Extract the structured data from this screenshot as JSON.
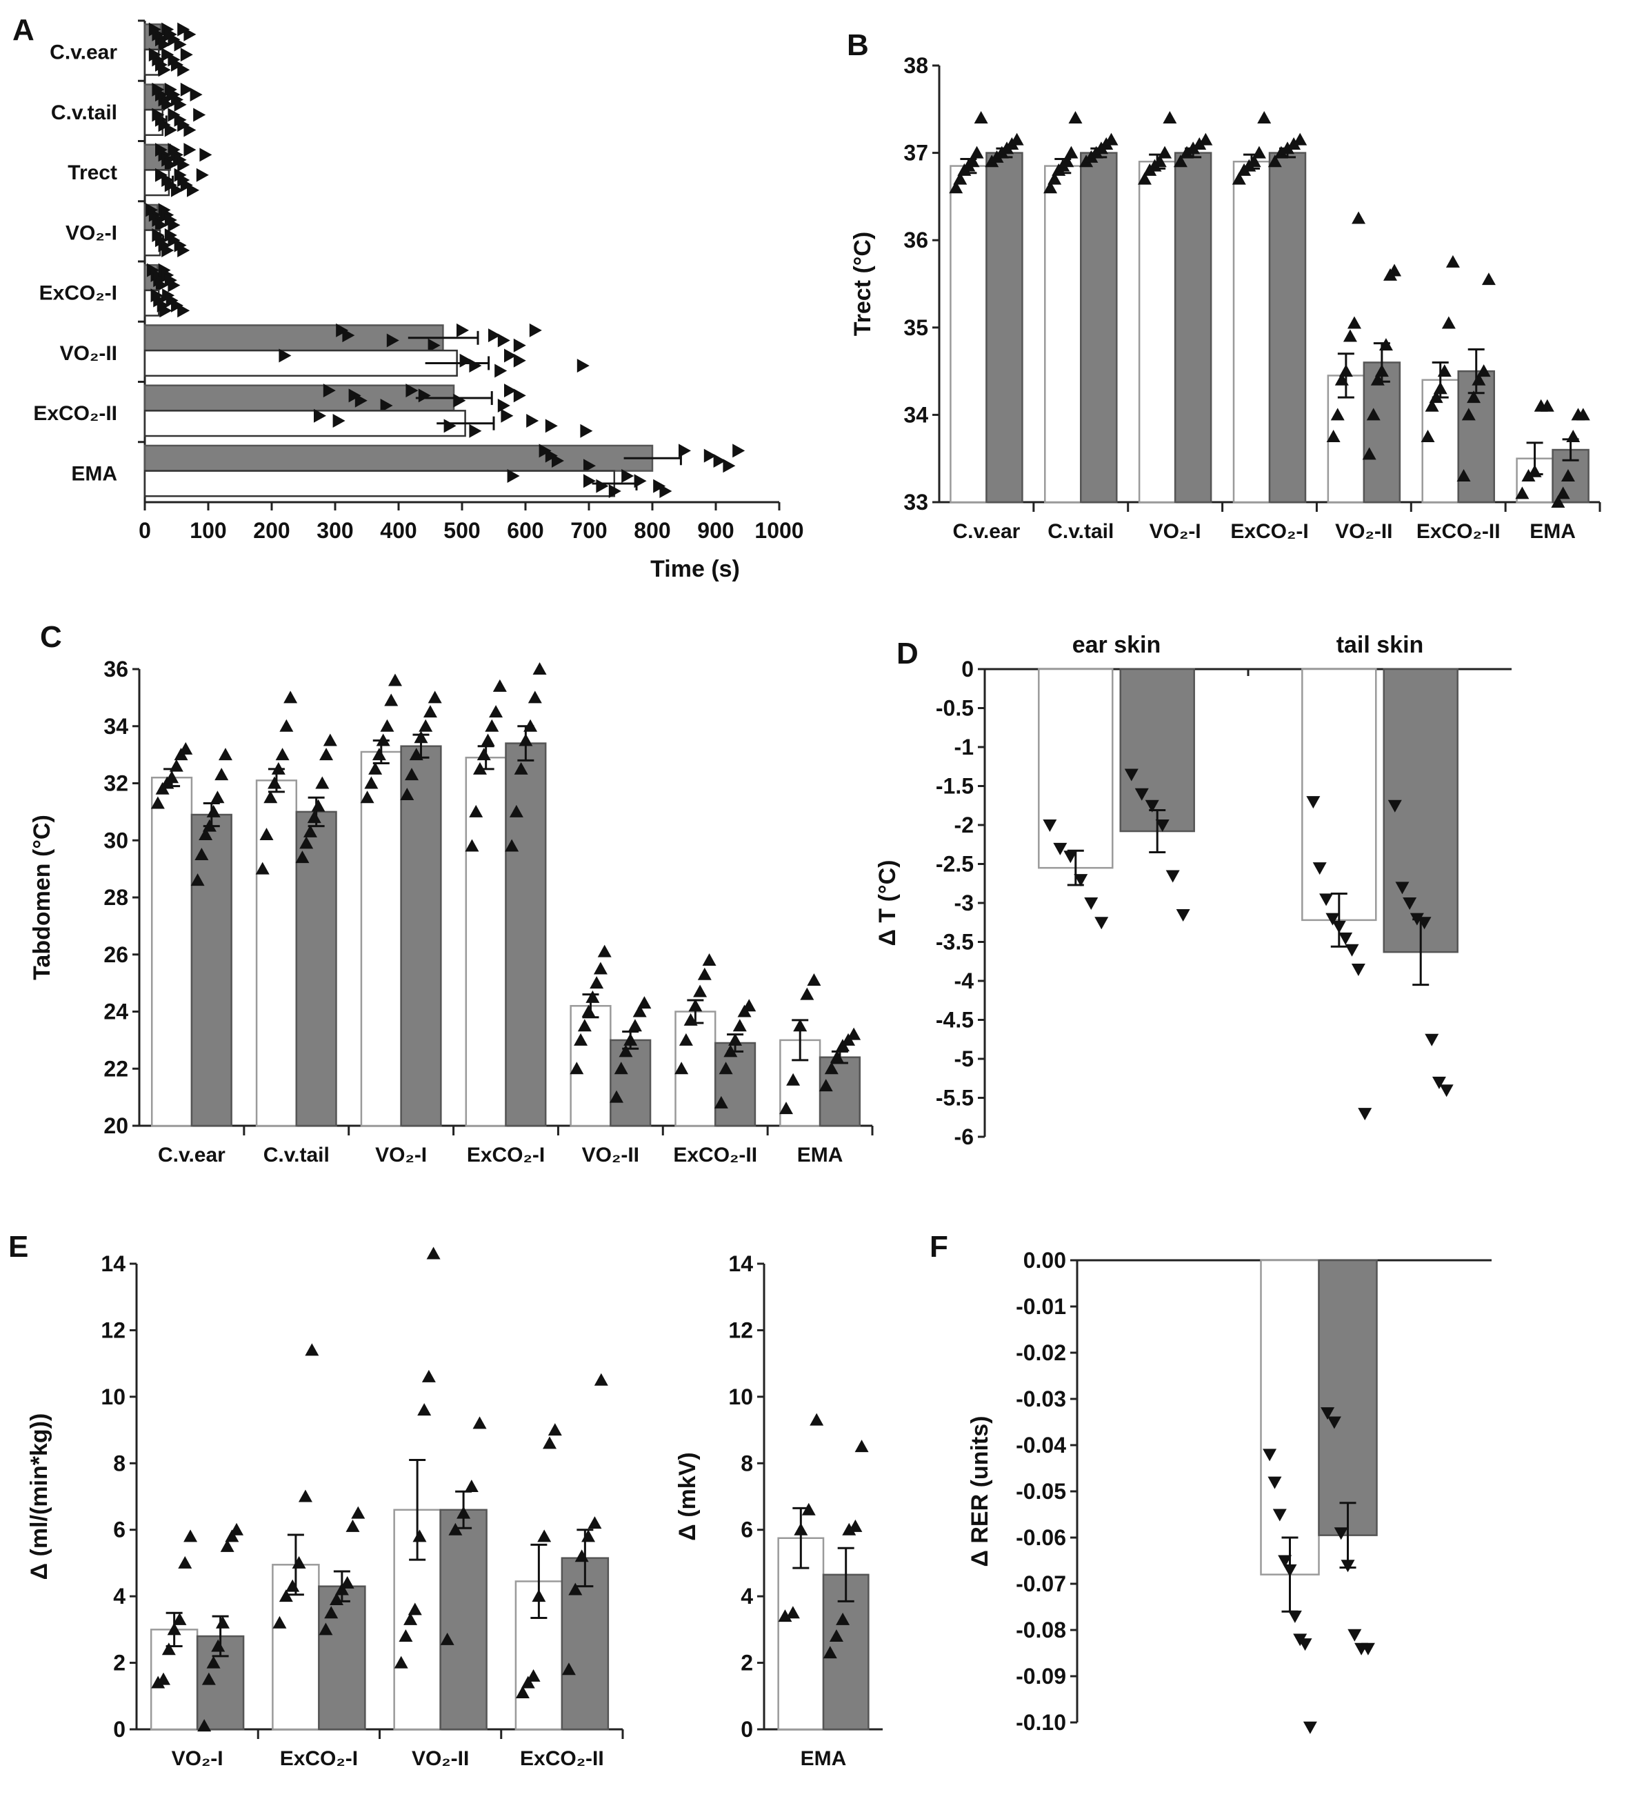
{
  "chart_data": [
    {
      "id": "A",
      "panel_label": "A",
      "type": "bar",
      "orientation": "horizontal",
      "categories": [
        "C.v.ear",
        "C.v.tail",
        "Trect",
        "VO₂-I",
        "ExCO₂-I",
        "VO₂-II",
        "ExCO₂-II",
        "EMA"
      ],
      "series": [
        {
          "name": "filled",
          "color": "#7f7f7f",
          "values": [
            25,
            30,
            40,
            20,
            20,
            470,
            487,
            800
          ],
          "errors": [
            6,
            6,
            6,
            5,
            5,
            55,
            60,
            45
          ]
        },
        {
          "name": "open",
          "color": "#ffffff",
          "values": [
            22,
            28,
            38,
            24,
            22,
            492,
            505,
            740
          ],
          "errors": [
            6,
            6,
            6,
            5,
            5,
            50,
            45,
            35
          ]
        }
      ],
      "points": [
        [
          [
            15,
            20,
            25,
            30,
            35,
            40,
            45,
            55,
            60,
            70
          ],
          [
            15,
            20,
            25,
            30,
            35,
            45,
            50,
            60,
            65
          ]
        ],
        [
          [
            20,
            25,
            30,
            35,
            40,
            45,
            50,
            55,
            65,
            80
          ],
          [
            20,
            25,
            30,
            40,
            45,
            55,
            60,
            70,
            85
          ]
        ],
        [
          [
            25,
            30,
            35,
            40,
            45,
            50,
            55,
            60,
            70,
            95
          ],
          [
            25,
            35,
            40,
            50,
            55,
            60,
            65,
            75,
            90
          ]
        ],
        [
          [
            10,
            15,
            20,
            25,
            30,
            35,
            40,
            45
          ],
          [
            20,
            25,
            30,
            35,
            40,
            45,
            55,
            60
          ]
        ],
        [
          [
            12,
            18,
            22,
            26,
            30,
            35,
            40,
            45
          ],
          [
            18,
            22,
            28,
            32,
            36,
            42,
            50,
            60
          ]
        ],
        [
          [
            310,
            320,
            390,
            455,
            500,
            550,
            565,
            590,
            615
          ],
          [
            220,
            505,
            520,
            560,
            575,
            590,
            690
          ]
        ],
        [
          [
            290,
            330,
            340,
            380,
            420,
            440,
            495,
            565,
            575,
            590
          ],
          [
            275,
            305,
            480,
            520,
            570,
            610,
            640,
            695
          ]
        ],
        [
          [
            630,
            640,
            650,
            700,
            850,
            890,
            905,
            920,
            935
          ],
          [
            580,
            700,
            720,
            740,
            760,
            780,
            810,
            820
          ]
        ]
      ],
      "xlim": [
        0,
        1000
      ],
      "xticks": [
        0,
        100,
        200,
        300,
        400,
        500,
        600,
        700,
        800,
        900,
        1000
      ],
      "xlabel": "Time (s)",
      "ylabel": ""
    },
    {
      "id": "B",
      "panel_label": "B",
      "type": "bar",
      "categories": [
        "C.v.ear",
        "C.v.tail",
        "VO₂-I",
        "ExCO₂-I",
        "VO₂-II",
        "ExCO₂-II",
        "EMA"
      ],
      "series": [
        {
          "name": "open",
          "color": "#ffffff",
          "values": [
            36.85,
            36.85,
            36.9,
            36.9,
            34.45,
            34.4,
            33.5
          ],
          "errors": [
            0.08,
            0.08,
            0.08,
            0.08,
            0.25,
            0.2,
            0.18
          ]
        },
        {
          "name": "filled",
          "color": "#7f7f7f",
          "values": [
            37.0,
            37.0,
            37.0,
            37.0,
            34.6,
            34.5,
            33.6
          ],
          "errors": [
            0.05,
            0.05,
            0.05,
            0.05,
            0.22,
            0.25,
            0.12
          ]
        }
      ],
      "points": [
        [
          [
            36.6,
            36.7,
            36.8,
            36.85,
            36.9,
            37.0,
            37.4
          ],
          [
            36.9,
            36.95,
            37.0,
            37.05,
            37.1,
            37.15
          ]
        ],
        [
          [
            36.6,
            36.7,
            36.8,
            36.85,
            36.9,
            37.0,
            37.4
          ],
          [
            36.9,
            36.95,
            37.0,
            37.05,
            37.1,
            37.15
          ]
        ],
        [
          [
            36.7,
            36.8,
            36.85,
            36.9,
            37.0,
            37.4
          ],
          [
            36.9,
            37.0,
            37.05,
            37.1,
            37.15
          ]
        ],
        [
          [
            36.7,
            36.8,
            36.85,
            36.9,
            37.0,
            37.4
          ],
          [
            36.9,
            37.0,
            37.05,
            37.1,
            37.15
          ]
        ],
        [
          [
            33.75,
            34.0,
            34.4,
            34.5,
            34.9,
            35.05,
            36.25
          ],
          [
            33.55,
            34.0,
            34.4,
            34.5,
            34.8,
            35.6,
            35.65
          ]
        ],
        [
          [
            33.75,
            34.1,
            34.2,
            34.3,
            34.5,
            35.05,
            35.75
          ],
          [
            33.3,
            34.0,
            34.2,
            34.4,
            34.5,
            35.55
          ]
        ],
        [
          [
            33.1,
            33.3,
            33.35,
            34.1,
            34.1
          ],
          [
            33.0,
            33.1,
            33.3,
            33.75,
            34.0,
            34.0
          ]
        ]
      ],
      "ylim": [
        33,
        38
      ],
      "yticks": [
        33,
        34,
        35,
        36,
        37,
        38
      ],
      "ylabel": "Trect (°C)",
      "xlabel": ""
    },
    {
      "id": "C",
      "panel_label": "C",
      "type": "bar",
      "categories": [
        "C.v.ear",
        "C.v.tail",
        "VO₂-I",
        "ExCO₂-I",
        "VO₂-II",
        "ExCO₂-II",
        "EMA"
      ],
      "series": [
        {
          "name": "open",
          "color": "#ffffff",
          "values": [
            32.2,
            32.1,
            33.1,
            32.9,
            24.2,
            24.0,
            23.0
          ],
          "errors": [
            0.3,
            0.4,
            0.4,
            0.4,
            0.4,
            0.4,
            0.7
          ]
        },
        {
          "name": "filled",
          "color": "#7f7f7f",
          "values": [
            30.9,
            31.0,
            33.3,
            33.4,
            23.0,
            22.9,
            22.4
          ],
          "errors": [
            0.4,
            0.5,
            0.4,
            0.6,
            0.3,
            0.3,
            0.2
          ]
        }
      ],
      "points": [
        [
          [
            31.3,
            31.8,
            32.0,
            32.2,
            32.6,
            33.0,
            33.2
          ],
          [
            28.6,
            29.5,
            30.2,
            30.5,
            31.0,
            31.5,
            32.3,
            33.0
          ]
        ],
        [
          [
            29.0,
            30.2,
            31.5,
            32.0,
            32.5,
            33.0,
            34.0,
            35.0
          ],
          [
            29.4,
            29.9,
            30.3,
            30.8,
            31.2,
            32.0,
            33.0,
            33.5
          ]
        ],
        [
          [
            31.5,
            32.0,
            32.5,
            33.0,
            33.5,
            34.0,
            34.9,
            35.6
          ],
          [
            31.6,
            32.3,
            33.0,
            33.6,
            34.0,
            34.5,
            35.0
          ]
        ],
        [
          [
            29.8,
            31.0,
            32.5,
            33.0,
            33.5,
            34.0,
            34.5,
            35.4
          ],
          [
            29.8,
            31.0,
            32.5,
            33.5,
            34.0,
            35.0,
            36.0
          ]
        ],
        [
          [
            22.0,
            23.0,
            23.5,
            24.0,
            24.5,
            25.0,
            25.5,
            26.1
          ],
          [
            21.0,
            22.0,
            22.6,
            23.0,
            23.5,
            24.0,
            24.3
          ]
        ],
        [
          [
            22.0,
            23.0,
            23.7,
            24.2,
            24.7,
            25.3,
            25.8
          ],
          [
            20.8,
            22.0,
            22.6,
            23.0,
            23.5,
            24.0,
            24.2
          ]
        ],
        [
          [
            20.6,
            21.6,
            23.5,
            24.6,
            25.1
          ],
          [
            21.4,
            22.0,
            22.4,
            22.8,
            23.0,
            23.2
          ]
        ]
      ],
      "ylim": [
        20,
        36
      ],
      "yticks": [
        20,
        22,
        24,
        26,
        28,
        30,
        32,
        34,
        36
      ],
      "ylabel": "Tabdomen (°C)",
      "xlabel": ""
    },
    {
      "id": "D",
      "panel_label": "D",
      "type": "bar",
      "categories": [
        "ear skin",
        "tail skin"
      ],
      "series": [
        {
          "name": "open",
          "color": "#ffffff",
          "values": [
            -2.55,
            -3.22
          ],
          "errors": [
            0.22,
            0.34
          ]
        },
        {
          "name": "filled",
          "color": "#7f7f7f",
          "values": [
            -2.08,
            -3.63
          ],
          "errors": [
            0.27,
            0.42
          ]
        }
      ],
      "points": [
        [
          [
            -2.0,
            -2.3,
            -2.4,
            -2.7,
            -3.0,
            -3.25
          ],
          [
            -1.35,
            -1.6,
            -1.75,
            -2.0,
            -2.65,
            -3.15
          ]
        ],
        [
          [
            -1.7,
            -2.55,
            -2.95,
            -3.2,
            -3.3,
            -3.45,
            -3.6,
            -3.85,
            -5.7
          ],
          [
            -1.75,
            -2.8,
            -3.0,
            -3.2,
            -3.25,
            -4.75,
            -5.3,
            -5.4
          ]
        ]
      ],
      "ylim": [
        -6,
        0
      ],
      "yticks": [
        0,
        -0.5,
        -1,
        -1.5,
        -2,
        -2.5,
        -3,
        -3.5,
        -4,
        -4.5,
        -5,
        -5.5,
        -6
      ],
      "ylabel": "Δ T  (°C)",
      "xlabel": ""
    },
    {
      "id": "E1",
      "panel_label": "E",
      "type": "bar",
      "categories": [
        "VO₂-I",
        "ExCO₂-I",
        "VO₂-II",
        "ExCO₂-II"
      ],
      "series": [
        {
          "name": "open",
          "color": "#ffffff",
          "values": [
            3.0,
            4.95,
            6.6,
            4.45
          ],
          "errors": [
            0.5,
            0.9,
            1.5,
            1.1
          ]
        },
        {
          "name": "filled",
          "color": "#7f7f7f",
          "values": [
            2.8,
            4.3,
            6.6,
            5.15
          ],
          "errors": [
            0.6,
            0.45,
            0.55,
            0.85
          ]
        }
      ],
      "points": [
        [
          [
            1.4,
            1.5,
            2.4,
            3.0,
            3.3,
            5.0,
            5.8
          ],
          [
            0.1,
            1.5,
            2.0,
            2.5,
            3.2,
            5.5,
            5.8,
            6.0
          ]
        ],
        [
          [
            3.2,
            4.0,
            4.3,
            5.0,
            7.0,
            11.4
          ],
          [
            3.0,
            3.5,
            3.9,
            4.2,
            4.4,
            6.1,
            6.5
          ]
        ],
        [
          [
            2.0,
            2.8,
            3.3,
            3.6,
            5.8,
            9.6,
            10.6,
            14.3
          ],
          [
            2.7,
            6.0,
            6.5,
            7.3,
            9.2
          ]
        ],
        [
          [
            1.1,
            1.4,
            1.6,
            4.0,
            5.8,
            8.6,
            9.0
          ],
          [
            1.8,
            4.2,
            5.2,
            5.8,
            6.2,
            10.5
          ]
        ]
      ],
      "ylim": [
        0,
        14
      ],
      "yticks": [
        0,
        2,
        4,
        6,
        8,
        10,
        12,
        14
      ],
      "ylabel": "Δ (ml/(min*kg))",
      "xlabel": ""
    },
    {
      "id": "E2",
      "panel_label": "",
      "type": "bar",
      "categories": [
        "EMA"
      ],
      "series": [
        {
          "name": "open",
          "color": "#ffffff",
          "values": [
            5.75
          ],
          "errors": [
            0.9
          ]
        },
        {
          "name": "filled",
          "color": "#7f7f7f",
          "values": [
            4.65
          ],
          "errors": [
            0.8
          ]
        }
      ],
      "points": [
        [
          [
            3.4,
            3.5,
            6.0,
            6.6,
            9.3
          ],
          [
            2.3,
            2.8,
            3.3,
            6.0,
            6.1,
            8.5
          ]
        ]
      ],
      "ylim": [
        0,
        14
      ],
      "yticks": [
        0,
        2,
        4,
        6,
        8,
        10,
        12,
        14
      ],
      "ylabel": "Δ (mkV)",
      "xlabel": ""
    },
    {
      "id": "F",
      "panel_label": "F",
      "type": "bar",
      "categories": [
        ""
      ],
      "series": [
        {
          "name": "open",
          "color": "#ffffff",
          "values": [
            -0.068
          ],
          "errors": [
            0.008
          ]
        },
        {
          "name": "filled",
          "color": "#7f7f7f",
          "values": [
            -0.0595
          ],
          "errors": [
            0.007
          ]
        }
      ],
      "points": [
        [
          [
            -0.042,
            -0.048,
            -0.055,
            -0.065,
            -0.067,
            -0.077,
            -0.082,
            -0.083,
            -0.101
          ],
          [
            -0.033,
            -0.035,
            -0.059,
            -0.066,
            -0.081,
            -0.084,
            -0.084
          ]
        ]
      ],
      "ylim": [
        -0.1,
        0
      ],
      "yticks": [
        "0.00",
        "-0.01",
        "-0.02",
        "-0.03",
        "-0.04",
        "-0.05",
        "-0.06",
        "-0.07",
        "-0.08",
        "-0.09",
        "-0.10"
      ],
      "ylabel": "Δ RER (units)",
      "xlabel": ""
    }
  ]
}
